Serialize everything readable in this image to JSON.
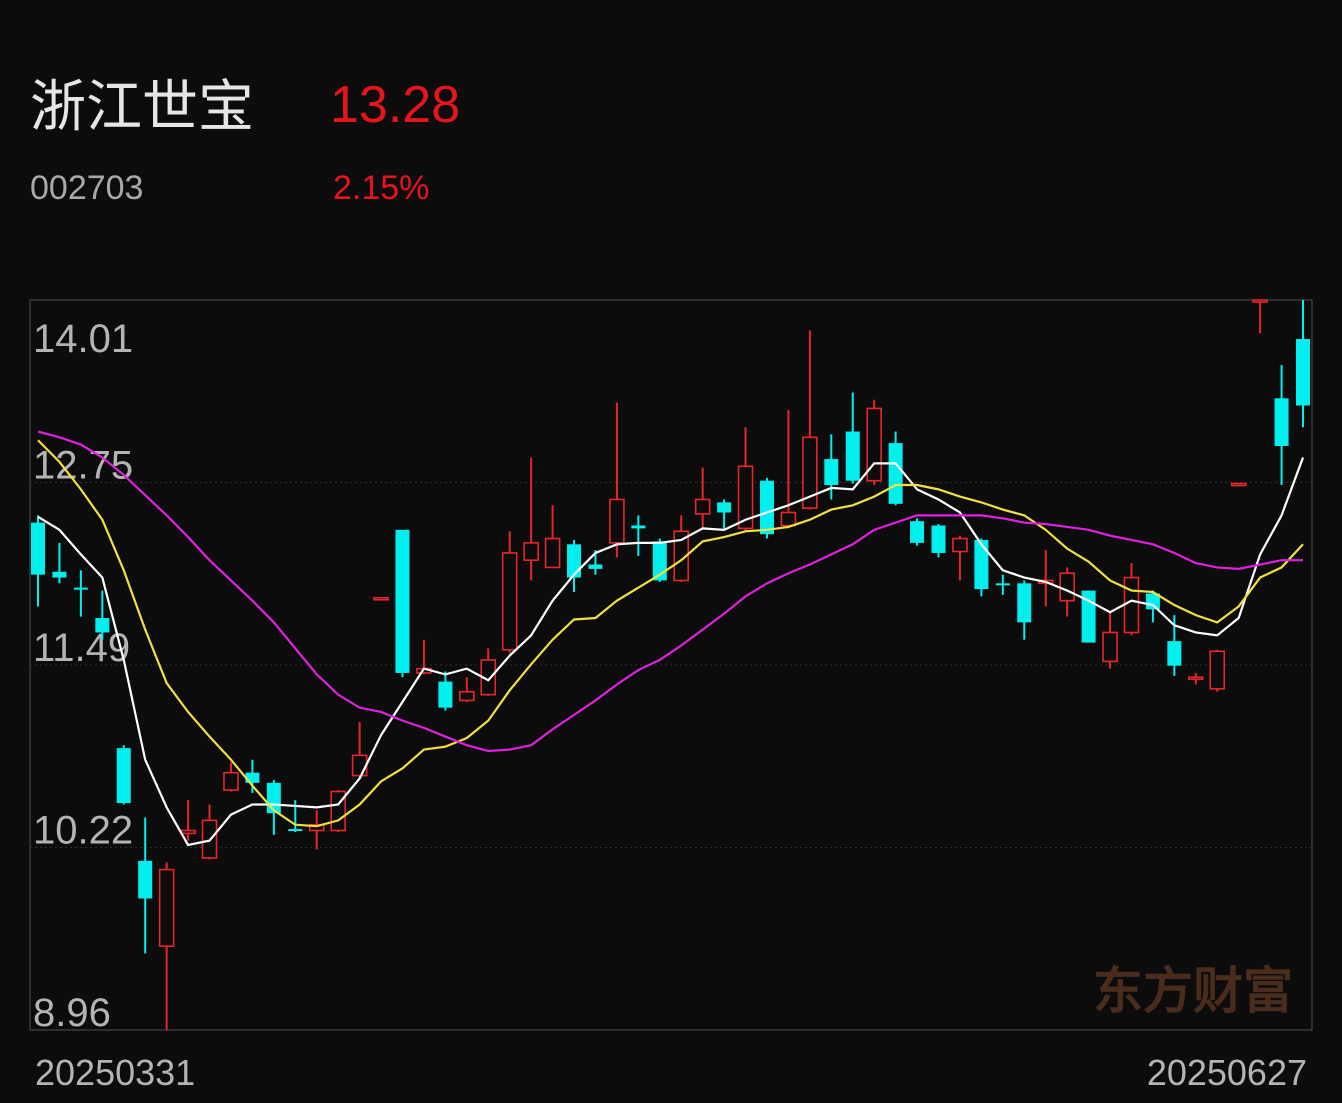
{
  "header": {
    "name": "浙江世宝",
    "price": "13.28",
    "code": "002703",
    "change": "2.15%"
  },
  "chart_data": {
    "type": "candlestick",
    "watermark": "东方财富",
    "categories": [
      "20250331",
      null,
      null,
      null,
      null,
      null,
      null,
      null,
      null,
      null,
      null,
      null,
      null,
      null,
      null,
      null,
      null,
      null,
      null,
      null,
      null,
      null,
      null,
      null,
      null,
      null,
      null,
      null,
      null,
      null,
      null,
      null,
      null,
      null,
      null,
      null,
      null,
      null,
      null,
      null,
      null,
      null,
      null,
      null,
      null,
      null,
      null,
      null,
      null,
      null,
      null,
      null,
      null,
      null,
      null,
      null,
      null,
      null,
      null,
      "20250627"
    ],
    "up_color": "#e8262a",
    "down_color": "#00f0f0",
    "open": [
      12.47,
      12.13,
      12.02,
      11.81,
      10.91,
      10.13,
      9.54,
      10.32,
      10.15,
      10.62,
      10.74,
      10.67,
      10.35,
      10.34,
      10.34,
      10.72,
      11.95,
      12.42,
      11.43,
      11.37,
      11.24,
      11.28,
      11.59,
      12.21,
      12.16,
      12.32,
      12.18,
      12.33,
      12.45,
      12.34,
      12.07,
      12.53,
      12.61,
      12.43,
      12.76,
      12.45,
      12.57,
      12.91,
      13.1,
      12.76,
      13.02,
      12.48,
      12.45,
      12.27,
      12.35,
      12.05,
      12.05,
      12.05,
      11.93,
      12.0,
      11.51,
      11.71,
      11.98,
      11.65,
      11.39,
      11.32,
      12.74,
      14.0,
      13.33,
      13.74
    ],
    "high": [
      12.52,
      12.33,
      12.14,
      12.0,
      10.93,
      10.43,
      10.12,
      10.55,
      10.52,
      10.81,
      10.83,
      10.69,
      10.55,
      10.48,
      10.62,
      11.09,
      11.95,
      12.42,
      11.66,
      11.44,
      11.4,
      11.6,
      12.41,
      12.92,
      12.59,
      12.35,
      12.28,
      13.3,
      12.52,
      12.36,
      12.52,
      12.85,
      12.63,
      13.13,
      12.78,
      13.25,
      13.8,
      13.08,
      13.37,
      13.32,
      13.1,
      12.5,
      12.46,
      12.38,
      12.36,
      12.11,
      12.07,
      12.28,
      12.16,
      12.0,
      11.85,
      12.19,
      12.0,
      11.83,
      11.43,
      11.59,
      12.74,
      14.01,
      13.56,
      14.01
    ],
    "low": [
      11.89,
      12.05,
      11.82,
      11.66,
      10.52,
      9.49,
      8.96,
      10.27,
      10.14,
      10.61,
      10.6,
      10.31,
      10.33,
      10.21,
      10.33,
      10.71,
      11.95,
      11.4,
      11.42,
      11.17,
      11.23,
      11.27,
      11.57,
      12.07,
      12.16,
      11.99,
      12.11,
      12.23,
      12.24,
      12.06,
      12.06,
      12.42,
      12.42,
      12.41,
      12.36,
      12.43,
      12.56,
      12.63,
      12.74,
      12.73,
      12.59,
      12.31,
      12.23,
      12.07,
      11.96,
      11.97,
      11.66,
      11.89,
      11.82,
      11.64,
      11.46,
      11.69,
      11.78,
      11.41,
      11.35,
      11.3,
      12.74,
      13.78,
      12.73,
      13.13
    ],
    "close": [
      12.11,
      12.09,
      12.01,
      11.71,
      10.53,
      9.87,
      10.07,
      10.34,
      10.41,
      10.74,
      10.67,
      10.46,
      10.34,
      10.38,
      10.61,
      10.86,
      11.95,
      11.43,
      11.46,
      11.19,
      11.3,
      11.52,
      12.26,
      12.33,
      12.36,
      12.09,
      12.15,
      12.63,
      12.43,
      12.07,
      12.41,
      12.63,
      12.54,
      12.86,
      12.39,
      12.54,
      13.06,
      12.73,
      12.76,
      13.26,
      12.6,
      12.33,
      12.26,
      12.36,
      12.01,
      12.04,
      11.78,
      12.07,
      12.12,
      11.64,
      11.71,
      12.09,
      11.87,
      11.48,
      11.4,
      11.58,
      12.74,
      14.01,
      13.0,
      13.28
    ],
    "ma_lines": [
      {
        "color": "#ffffff",
        "values": [
          12.51,
          12.42,
          12.25,
          12.09,
          11.52,
          10.83,
          10.5,
          10.24,
          10.27,
          10.45,
          10.52,
          10.52,
          10.51,
          10.5,
          10.52,
          10.7,
          11.0,
          11.23,
          11.46,
          11.42,
          11.46,
          11.38,
          11.55,
          11.69,
          11.93,
          12.11,
          12.26,
          12.32,
          12.33,
          12.33,
          12.35,
          12.43,
          12.42,
          12.49,
          12.54,
          12.59,
          12.65,
          12.71,
          12.7,
          12.88,
          12.88,
          12.7,
          12.63,
          12.54,
          12.32,
          12.14,
          12.09,
          12.06,
          12.0,
          11.93,
          11.85,
          11.93,
          11.9,
          11.76,
          11.71,
          11.69,
          11.81,
          12.25,
          12.52,
          12.92
        ]
      },
      {
        "color": "#f0e040",
        "values": [
          13.04,
          12.89,
          12.7,
          12.49,
          12.14,
          11.73,
          11.36,
          11.16,
          10.99,
          10.83,
          10.65,
          10.48,
          10.38,
          10.37,
          10.41,
          10.52,
          10.68,
          10.77,
          10.9,
          10.92,
          10.98,
          11.1,
          11.31,
          11.49,
          11.66,
          11.8,
          11.81,
          11.93,
          12.02,
          12.11,
          12.21,
          12.34,
          12.37,
          12.41,
          12.42,
          12.44,
          12.49,
          12.56,
          12.59,
          12.65,
          12.73,
          12.73,
          12.7,
          12.65,
          12.61,
          12.56,
          12.52,
          12.42,
          12.29,
          12.2,
          12.07,
          12.0,
          11.99,
          11.9,
          11.83,
          11.78,
          11.89,
          12.09,
          12.16,
          12.32
        ]
      },
      {
        "color": "#e020e0",
        "values": [
          13.1,
          13.06,
          13.01,
          12.92,
          12.8,
          12.66,
          12.52,
          12.37,
          12.21,
          12.07,
          11.93,
          11.78,
          11.6,
          11.42,
          11.28,
          11.19,
          11.16,
          11.1,
          11.05,
          10.99,
          10.93,
          10.89,
          10.9,
          10.93,
          11.04,
          11.14,
          11.24,
          11.35,
          11.45,
          11.52,
          11.62,
          11.73,
          11.84,
          11.96,
          12.05,
          12.12,
          12.18,
          12.25,
          12.32,
          12.42,
          12.47,
          12.52,
          12.52,
          12.52,
          12.52,
          12.5,
          12.47,
          12.46,
          12.44,
          12.42,
          12.38,
          12.35,
          12.32,
          12.26,
          12.19,
          12.16,
          12.15,
          12.18,
          12.21,
          12.21
        ]
      }
    ],
    "ylim": [
      8.96,
      14.01
    ],
    "yticks": [
      {
        "value": 8.96,
        "label": "8.96"
      },
      {
        "value": 10.2225,
        "label": "10.22"
      },
      {
        "value": 11.485,
        "label": "11.49"
      },
      {
        "value": 12.7475,
        "label": "12.75"
      },
      {
        "value": 14.01,
        "label": "14.01"
      }
    ],
    "grid": true
  }
}
